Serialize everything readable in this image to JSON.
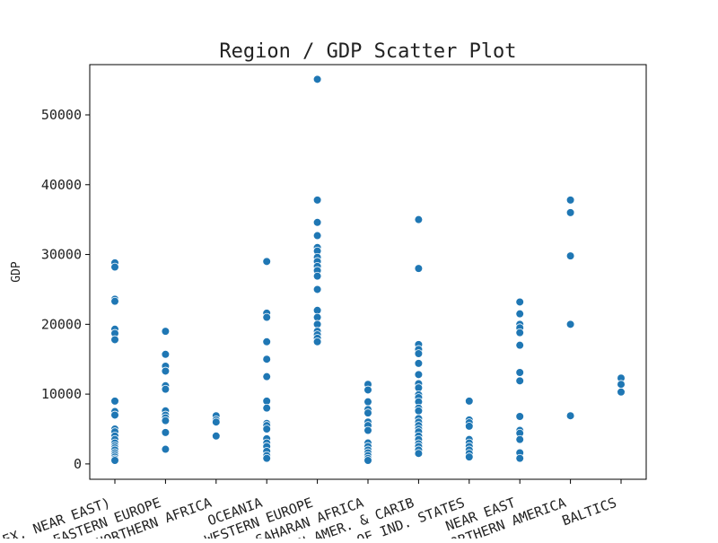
{
  "chart_data": {
    "type": "scatter",
    "title": "Region / GDP Scatter Plot",
    "xlabel": "",
    "ylabel": "GDP",
    "ylim": [
      -2200,
      57200
    ],
    "yticks": [
      0,
      10000,
      20000,
      30000,
      40000,
      50000
    ],
    "categories": [
      "ASIA (EX. NEAR EAST)",
      "EASTERN EUROPE",
      "NORTHERN AFRICA",
      "OCEANIA",
      "WESTERN EUROPE",
      "SUB-SAHARAN AFRICA",
      "LATIN AMER. & CARIB",
      "C.W. OF IND. STATES",
      "NEAR EAST",
      "NORTHERN AMERICA",
      "BALTICS"
    ],
    "point_color": "#1f77b4",
    "series": [
      {
        "values": [
          [
            0,
            28800
          ],
          [
            0,
            28200
          ],
          [
            0,
            23600
          ],
          [
            0,
            23300
          ],
          [
            0,
            19300
          ],
          [
            0,
            18700
          ],
          [
            0,
            17800
          ],
          [
            0,
            9000
          ],
          [
            0,
            7500
          ],
          [
            0,
            7000
          ],
          [
            0,
            5000
          ],
          [
            0,
            4600
          ],
          [
            0,
            4000
          ],
          [
            0,
            3500
          ],
          [
            0,
            3000
          ],
          [
            0,
            2600
          ],
          [
            0,
            2300
          ],
          [
            0,
            2000
          ],
          [
            0,
            1600
          ],
          [
            0,
            1300
          ],
          [
            0,
            1000
          ],
          [
            0,
            700
          ],
          [
            0,
            500
          ],
          [
            1,
            19000
          ],
          [
            1,
            15700
          ],
          [
            1,
            14000
          ],
          [
            1,
            13300
          ],
          [
            1,
            11200
          ],
          [
            1,
            10700
          ],
          [
            1,
            7600
          ],
          [
            1,
            7000
          ],
          [
            1,
            6600
          ],
          [
            1,
            6200
          ],
          [
            1,
            4500
          ],
          [
            1,
            2100
          ],
          [
            2,
            6900
          ],
          [
            2,
            6300
          ],
          [
            2,
            6000
          ],
          [
            2,
            4000
          ],
          [
            3,
            29000
          ],
          [
            3,
            21600
          ],
          [
            3,
            21000
          ],
          [
            3,
            17500
          ],
          [
            3,
            15000
          ],
          [
            3,
            12500
          ],
          [
            3,
            9000
          ],
          [
            3,
            8000
          ],
          [
            3,
            5800
          ],
          [
            3,
            5500
          ],
          [
            3,
            5000
          ],
          [
            3,
            3600
          ],
          [
            3,
            3000
          ],
          [
            3,
            2500
          ],
          [
            3,
            1800
          ],
          [
            3,
            1200
          ],
          [
            3,
            800
          ],
          [
            4,
            55100
          ],
          [
            4,
            37800
          ],
          [
            4,
            34600
          ],
          [
            4,
            32700
          ],
          [
            4,
            31000
          ],
          [
            4,
            30500
          ],
          [
            4,
            29600
          ],
          [
            4,
            29000
          ],
          [
            4,
            28300
          ],
          [
            4,
            27700
          ],
          [
            4,
            26900
          ],
          [
            4,
            25000
          ],
          [
            4,
            22000
          ],
          [
            4,
            21000
          ],
          [
            4,
            20000
          ],
          [
            4,
            19000
          ],
          [
            4,
            18500
          ],
          [
            4,
            18000
          ],
          [
            4,
            17500
          ],
          [
            5,
            11400
          ],
          [
            5,
            10600
          ],
          [
            5,
            8900
          ],
          [
            5,
            7800
          ],
          [
            5,
            7300
          ],
          [
            5,
            6000
          ],
          [
            5,
            5500
          ],
          [
            5,
            4800
          ],
          [
            5,
            3000
          ],
          [
            5,
            2500
          ],
          [
            5,
            2000
          ],
          [
            5,
            1600
          ],
          [
            5,
            1200
          ],
          [
            5,
            800
          ],
          [
            5,
            500
          ],
          [
            6,
            35000
          ],
          [
            6,
            28000
          ],
          [
            6,
            17100
          ],
          [
            6,
            16400
          ],
          [
            6,
            15800
          ],
          [
            6,
            14400
          ],
          [
            6,
            12800
          ],
          [
            6,
            11500
          ],
          [
            6,
            10900
          ],
          [
            6,
            9900
          ],
          [
            6,
            9500
          ],
          [
            6,
            8900
          ],
          [
            6,
            8000
          ],
          [
            6,
            7600
          ],
          [
            6,
            6500
          ],
          [
            6,
            6000
          ],
          [
            6,
            5500
          ],
          [
            6,
            5000
          ],
          [
            6,
            4600
          ],
          [
            6,
            4000
          ],
          [
            6,
            3500
          ],
          [
            6,
            2900
          ],
          [
            6,
            2500
          ],
          [
            6,
            2000
          ],
          [
            6,
            1500
          ],
          [
            7,
            9000
          ],
          [
            7,
            6300
          ],
          [
            7,
            5900
          ],
          [
            7,
            5400
          ],
          [
            7,
            3500
          ],
          [
            7,
            3000
          ],
          [
            7,
            2500
          ],
          [
            7,
            2000
          ],
          [
            7,
            1500
          ],
          [
            7,
            1000
          ],
          [
            8,
            23200
          ],
          [
            8,
            21500
          ],
          [
            8,
            20000
          ],
          [
            8,
            19500
          ],
          [
            8,
            18800
          ],
          [
            8,
            17000
          ],
          [
            8,
            13100
          ],
          [
            8,
            11900
          ],
          [
            8,
            6800
          ],
          [
            8,
            4800
          ],
          [
            8,
            4400
          ],
          [
            8,
            3500
          ],
          [
            8,
            1600
          ],
          [
            8,
            800
          ],
          [
            9,
            37800
          ],
          [
            9,
            36000
          ],
          [
            9,
            29800
          ],
          [
            9,
            20000
          ],
          [
            9,
            6900
          ],
          [
            10,
            12300
          ],
          [
            10,
            11400
          ],
          [
            10,
            10300
          ]
        ]
      }
    ]
  }
}
